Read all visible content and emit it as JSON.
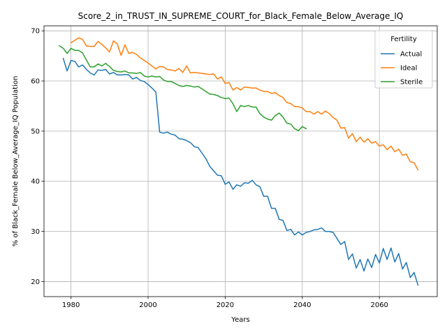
{
  "chart_data": {
    "type": "line",
    "title": "Score_2_in_TRUST_IN_SUPREME_COURT_for_Black_Female_Below_Average_IQ",
    "xlabel": "Years",
    "ylabel": "% of Black_Female Below_Average_IQ Population",
    "xlim": [
      1973,
      2075
    ],
    "ylim": [
      17,
      71
    ],
    "x_ticks": [
      1980,
      2000,
      2020,
      2040,
      2060
    ],
    "y_ticks": [
      20,
      30,
      40,
      50,
      60,
      70
    ],
    "grid": true,
    "legend": {
      "title": "Fertility",
      "position": "top-right"
    },
    "colors": {
      "Actual": "#1f77b4",
      "Ideal": "#ff7f0e",
      "Sterile": "#2ca02c"
    },
    "series": [
      {
        "name": "Actual",
        "x": [
          1978,
          1979,
          1980,
          1981,
          1982,
          1983,
          1984,
          1985,
          1986,
          1987,
          1988,
          1989,
          1990,
          1991,
          1992,
          1993,
          1994,
          1995,
          1996,
          1997,
          1998,
          1999,
          2000,
          2001,
          2002,
          2003,
          2004,
          2005,
          2006,
          2007,
          2008,
          2009,
          2010,
          2011,
          2012,
          2013,
          2014,
          2015,
          2016,
          2017,
          2018,
          2019,
          2020,
          2021,
          2022,
          2023,
          2024,
          2025,
          2026,
          2027,
          2028,
          2029,
          2030,
          2031,
          2032,
          2033,
          2034,
          2035,
          2036,
          2037,
          2038,
          2039,
          2040,
          2041,
          2042,
          2043,
          2044,
          2045,
          2046,
          2047,
          2048,
          2049,
          2050,
          2051,
          2052,
          2053,
          2054,
          2055,
          2056,
          2057,
          2058,
          2059,
          2060,
          2061,
          2062,
          2063,
          2064,
          2065,
          2066,
          2067,
          2068,
          2069,
          2070
        ],
        "values": [
          64.5,
          62.0,
          64.1,
          63.9,
          62.8,
          63.2,
          62.3,
          61.6,
          61.2,
          62.2,
          62.1,
          62.3,
          61.4,
          61.7,
          61.2,
          61.2,
          61.3,
          61.2,
          60.4,
          60.7,
          60.1,
          59.9,
          59.3,
          58.6,
          57.8,
          49.8,
          49.6,
          49.8,
          49.4,
          49.2,
          48.5,
          48.4,
          48.1,
          47.7,
          46.9,
          46.7,
          45.6,
          44.5,
          43.0,
          42.1,
          41.2,
          41.1,
          39.4,
          39.9,
          38.4,
          39.3,
          39.0,
          39.7,
          39.6,
          40.2,
          39.3,
          38.9,
          37.0,
          37.0,
          34.6,
          34.6,
          32.4,
          32.2,
          30.2,
          30.4,
          29.3,
          29.9,
          29.3,
          29.8,
          30.0,
          30.3,
          30.4,
          30.7,
          30.0,
          30.0,
          29.8,
          28.6,
          27.4,
          28.0,
          24.4,
          25.5,
          22.7,
          24.4,
          22.1,
          24.5,
          22.8,
          25.4,
          23.7,
          26.6,
          24.4,
          26.7,
          23.9,
          25.6,
          22.5,
          23.8,
          20.8,
          21.8,
          19.3
        ]
      },
      {
        "name": "Ideal",
        "x": [
          1980,
          1981,
          1982,
          1983,
          1984,
          1985,
          1986,
          1987,
          1988,
          1989,
          1990,
          1991,
          1992,
          1993,
          1994,
          1995,
          1996,
          1997,
          1998,
          1999,
          2000,
          2001,
          2002,
          2003,
          2004,
          2005,
          2006,
          2007,
          2008,
          2009,
          2010,
          2011,
          2012,
          2013,
          2014,
          2015,
          2016,
          2017,
          2018,
          2019,
          2020,
          2021,
          2022,
          2023,
          2024,
          2025,
          2026,
          2027,
          2028,
          2029,
          2030,
          2031,
          2032,
          2033,
          2034,
          2035,
          2036,
          2037,
          2038,
          2039,
          2040,
          2041,
          2042,
          2043,
          2044,
          2045,
          2046,
          2047,
          2048,
          2049,
          2050,
          2051,
          2052,
          2053,
          2054,
          2055,
          2056,
          2057,
          2058,
          2059,
          2060,
          2061,
          2062,
          2063,
          2064,
          2065,
          2066,
          2067,
          2068,
          2069,
          2070
        ],
        "values": [
          67.6,
          68.1,
          68.6,
          68.3,
          67.0,
          66.9,
          66.9,
          67.9,
          67.3,
          66.6,
          65.8,
          68.0,
          67.4,
          65.1,
          67.2,
          65.5,
          65.7,
          65.3,
          64.6,
          64.1,
          63.6,
          63.0,
          62.4,
          62.9,
          62.8,
          62.3,
          62.2,
          62.0,
          62.5,
          61.7,
          63.0,
          61.6,
          61.7,
          61.6,
          61.5,
          61.4,
          61.3,
          61.4,
          60.4,
          60.8,
          59.5,
          59.7,
          58.2,
          58.7,
          58.2,
          58.8,
          58.7,
          58.6,
          58.6,
          58.2,
          57.9,
          57.9,
          57.5,
          57.7,
          57.1,
          56.7,
          55.7,
          55.5,
          54.9,
          54.9,
          54.6,
          53.9,
          53.9,
          53.4,
          53.9,
          53.4,
          54.0,
          53.5,
          52.7,
          52.2,
          50.6,
          50.7,
          48.6,
          49.5,
          47.9,
          48.8,
          47.8,
          48.5,
          47.6,
          47.9,
          47.0,
          47.3,
          46.3,
          47.0,
          45.9,
          46.4,
          45.2,
          45.4,
          43.9,
          43.7,
          42.3
        ]
      },
      {
        "name": "Sterile",
        "x": [
          1977,
          1978,
          1979,
          1980,
          1981,
          1982,
          1983,
          1984,
          1985,
          1986,
          1987,
          1988,
          1989,
          1990,
          1991,
          1992,
          1993,
          1994,
          1995,
          1996,
          1997,
          1998,
          1999,
          2000,
          2001,
          2002,
          2003,
          2004,
          2005,
          2006,
          2007,
          2008,
          2009,
          2010,
          2011,
          2012,
          2013,
          2014,
          2015,
          2016,
          2017,
          2018,
          2019,
          2020,
          2021,
          2022,
          2023,
          2024,
          2025,
          2026,
          2027,
          2028,
          2029,
          2030,
          2031,
          2032,
          2033,
          2034,
          2035,
          2036,
          2037,
          2038,
          2039,
          2040,
          2041
        ],
        "values": [
          67.0,
          66.5,
          65.5,
          66.5,
          66.1,
          66.1,
          65.6,
          64.2,
          62.8,
          62.8,
          63.4,
          63.0,
          63.5,
          62.9,
          62.1,
          61.9,
          61.8,
          62.0,
          61.6,
          61.6,
          61.5,
          61.7,
          61.0,
          60.8,
          61.0,
          60.8,
          60.9,
          60.2,
          59.9,
          59.9,
          59.5,
          59.1,
          58.9,
          59.1,
          59.0,
          58.8,
          58.9,
          58.4,
          57.9,
          57.4,
          57.3,
          57.1,
          56.7,
          56.5,
          56.6,
          55.5,
          53.9,
          55.1,
          54.9,
          55.1,
          54.8,
          54.8,
          53.5,
          52.8,
          52.4,
          52.2,
          53.1,
          53.6,
          52.8,
          51.6,
          51.4,
          50.5,
          50.1,
          50.9,
          50.5
        ]
      }
    ]
  }
}
